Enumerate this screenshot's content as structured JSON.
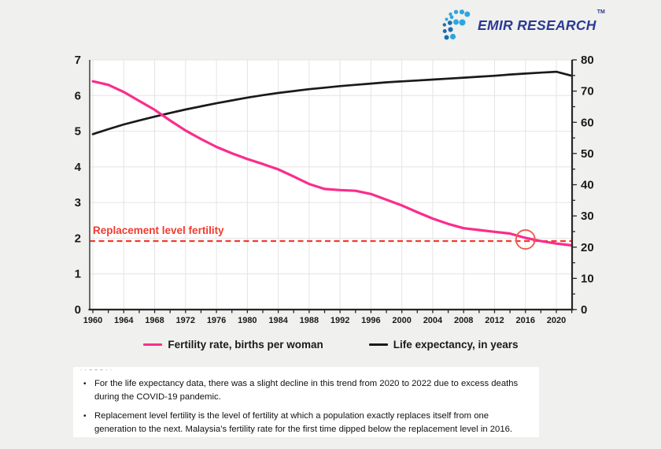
{
  "page": {
    "background": "#f0f0ee"
  },
  "logo": {
    "text": "EMIR RESEARCH",
    "tm": "TM",
    "text_color": "#2b3a94",
    "dot_color_light": "#2ba7df",
    "dot_color_dark": "#1b6db0"
  },
  "chart_data": {
    "type": "line",
    "x": [
      1960,
      1962,
      1964,
      1966,
      1968,
      1970,
      1972,
      1974,
      1976,
      1978,
      1980,
      1982,
      1984,
      1986,
      1988,
      1990,
      1992,
      1994,
      1996,
      1998,
      2000,
      2002,
      2004,
      2006,
      2008,
      2010,
      2012,
      2014,
      2016,
      2018,
      2020,
      2022
    ],
    "series": [
      {
        "name": "Fertility rate, births per woman",
        "axis": "left",
        "color": "#fa2d8c",
        "values": [
          6.4,
          6.3,
          6.1,
          5.85,
          5.6,
          5.3,
          5.02,
          4.78,
          4.56,
          4.38,
          4.22,
          4.08,
          3.93,
          3.73,
          3.52,
          3.38,
          3.35,
          3.33,
          3.24,
          3.08,
          2.92,
          2.73,
          2.55,
          2.4,
          2.28,
          2.23,
          2.18,
          2.13,
          2.01,
          1.92,
          1.85,
          1.8
        ]
      },
      {
        "name": "Life expectancy, in years",
        "axis": "right",
        "color": "#1a1a1a",
        "values": [
          56.2,
          57.8,
          59.3,
          60.6,
          61.8,
          63.0,
          64.1,
          65.1,
          66.1,
          67.0,
          67.9,
          68.7,
          69.4,
          70.0,
          70.6,
          71.1,
          71.6,
          72.0,
          72.4,
          72.8,
          73.1,
          73.4,
          73.7,
          74.0,
          74.3,
          74.6,
          74.9,
          75.3,
          75.6,
          75.9,
          76.2,
          74.9
        ]
      }
    ],
    "left_axis": {
      "min": 0,
      "max": 7,
      "tick_step": 1,
      "ticks": [
        0,
        1,
        2,
        3,
        4,
        5,
        6,
        7
      ]
    },
    "right_axis": {
      "min": 0,
      "max": 80,
      "tick_step": 10,
      "ticks": [
        0,
        10,
        20,
        30,
        40,
        50,
        60,
        70,
        80
      ]
    },
    "x_axis": {
      "min": 1960,
      "max": 2022,
      "label_step": 4,
      "minor_tick_step": 2,
      "tick_labels": [
        "1960",
        "1964",
        "1968",
        "1972",
        "1976",
        "1980",
        "1984",
        "1988",
        "1992",
        "1996",
        "2000",
        "2004",
        "2008",
        "2012",
        "2016",
        "2020"
      ]
    },
    "grid": true,
    "legend_position": "bottom",
    "annotations": {
      "replacement_line": {
        "label": "Replacement level fertility",
        "value": 2.1,
        "color": "#f23b2e",
        "style": "dashed"
      },
      "crossing_circle": {
        "year": 2016,
        "series": "Fertility rate, births per woman",
        "color": "#f15b4f"
      }
    }
  },
  "notes": {
    "cropped_fragment": "· · – – – · ·",
    "items": [
      {
        "text": "For the life expectancy data, there was a slight decline in this trend from 2020 to 2022 due to excess deaths during the COVID-19 pandemic."
      },
      {
        "text": "Replacement level fertility is the level of fertility at which a population exactly replaces itself from one generation to the next. Malaysia’s fertility rate for the first time dipped below the replacement level in 2016."
      }
    ]
  }
}
